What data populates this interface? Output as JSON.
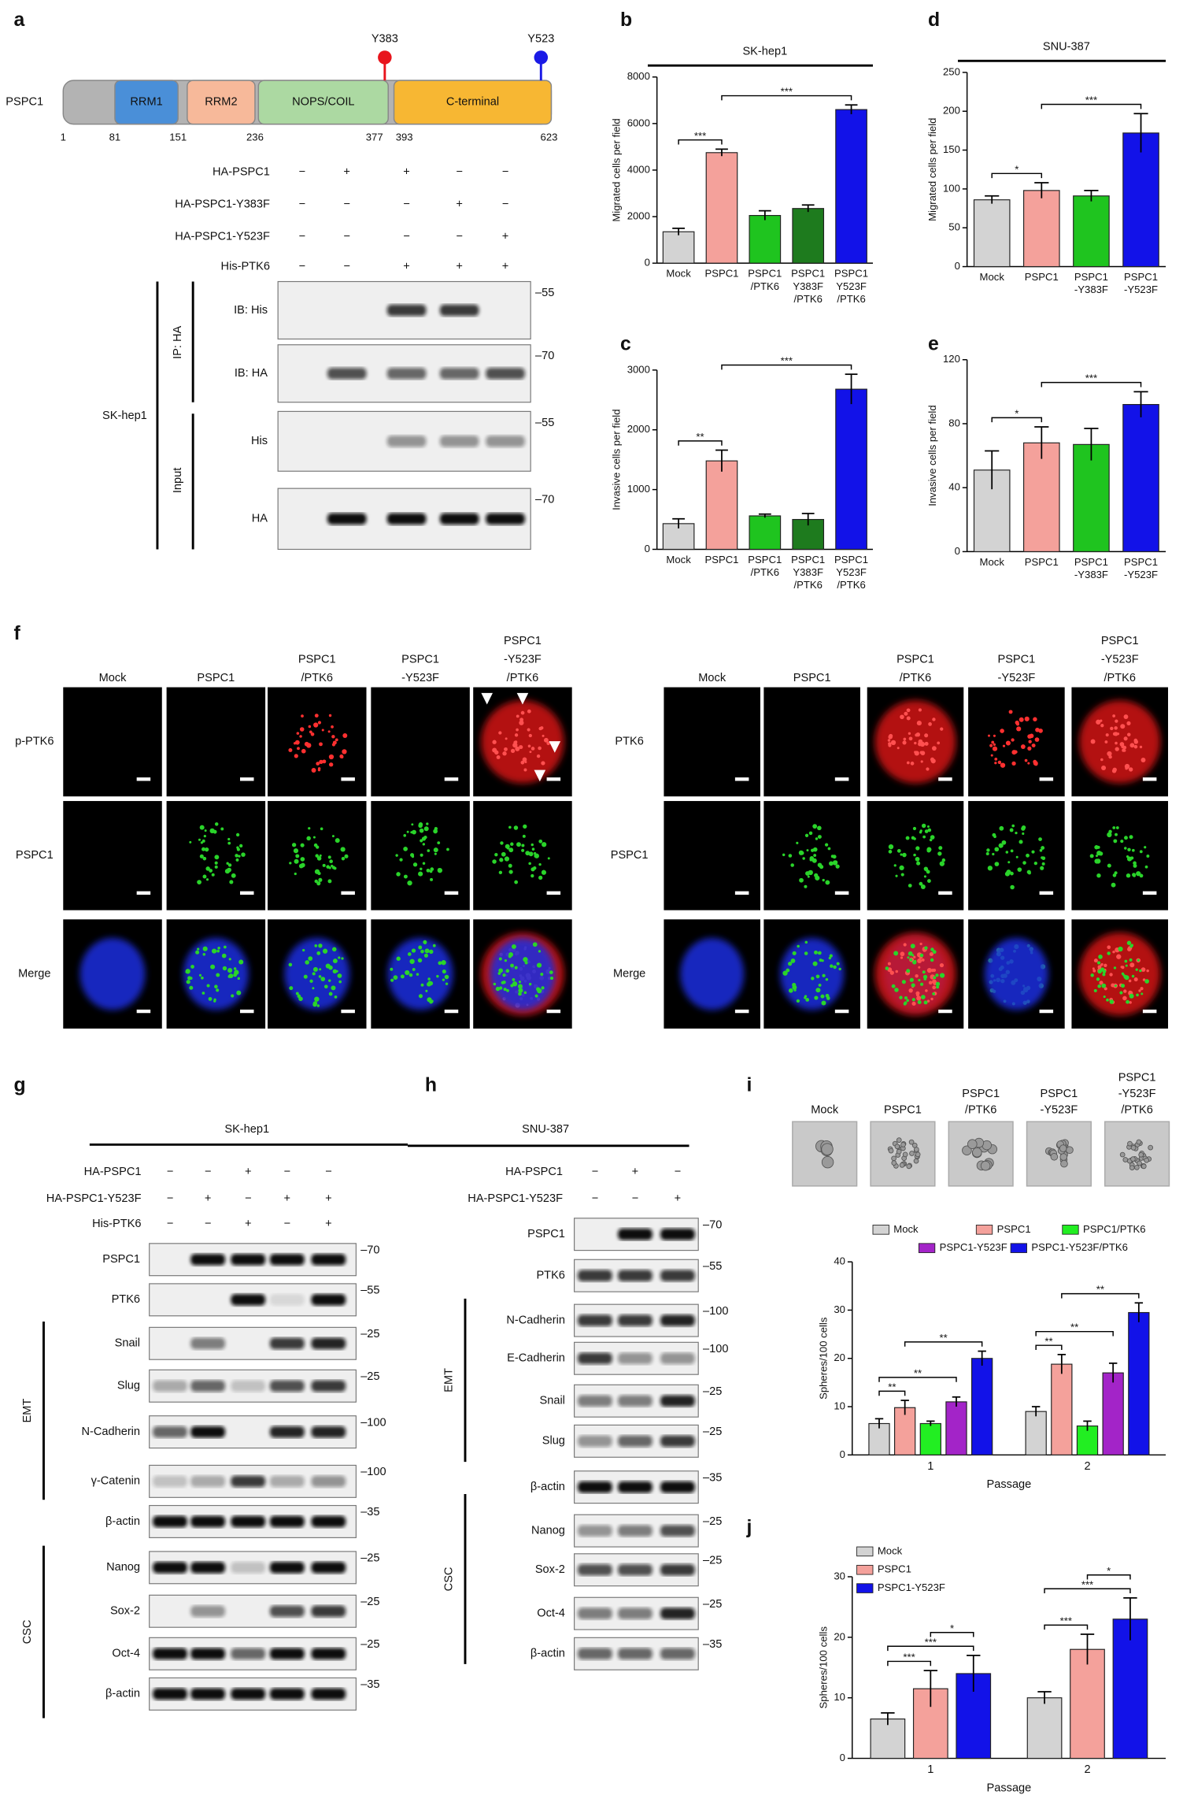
{
  "panel_labels": [
    "a",
    "b",
    "c",
    "d",
    "e",
    "f",
    "g",
    "h",
    "i",
    "j"
  ],
  "panel_a": {
    "protein": "PSPC1",
    "sites": [
      {
        "label": "Y383",
        "color": "#e8141c"
      },
      {
        "label": "Y523",
        "color": "#1a1ae6"
      }
    ],
    "domains": [
      "RRM1",
      "RRM2",
      "NOPS/COIL",
      "C-terminal"
    ],
    "positions": [
      "1",
      "81",
      "151",
      "236",
      "377",
      "393",
      "623"
    ],
    "conditions": [
      {
        "label": "HA-PSPC1",
        "signs": [
          "−",
          "+",
          "+",
          "−",
          "−"
        ]
      },
      {
        "label": "HA-PSPC1-Y383F",
        "signs": [
          "−",
          "−",
          "−",
          "+",
          "−"
        ]
      },
      {
        "label": "HA-PSPC1-Y523F",
        "signs": [
          "−",
          "−",
          "−",
          "−",
          "+"
        ]
      },
      {
        "label": "His-PTK6",
        "signs": [
          "−",
          "−",
          "+",
          "+",
          "+"
        ]
      }
    ],
    "groups": [
      "IP: HA",
      "Input"
    ],
    "cell_line": "SK-hep1",
    "blots": [
      {
        "label": "IB: His",
        "marker": "–55"
      },
      {
        "label": "IB: HA",
        "marker": "–70"
      },
      {
        "label": "His",
        "marker": "–55"
      },
      {
        "label": "HA",
        "marker": "–70"
      }
    ]
  },
  "panel_f": {
    "left": {
      "columns": [
        "Mock",
        "PSPC1",
        "PSPC1 /PTK6",
        "PSPC1 -Y523F",
        "PSPC1 -Y523F /PTK6"
      ],
      "rows": [
        {
          "label": "p-PTK6",
          "color": "#e8141c"
        },
        {
          "label": "PSPC1",
          "color": "#22c422"
        },
        {
          "label": "Merge",
          "color": "#111111"
        }
      ]
    },
    "right": {
      "columns": [
        "Mock",
        "PSPC1",
        "PSPC1 /PTK6",
        "PSPC1 -Y523F",
        "PSPC1 -Y523F /PTK6"
      ],
      "rows": [
        {
          "label": "PTK6",
          "color": "#e8141c"
        },
        {
          "label": "PSPC1",
          "color": "#22c422"
        },
        {
          "label": "Merge",
          "color": "#111111"
        }
      ]
    }
  },
  "panel_g": {
    "cell_line": "SK-hep1",
    "conditions": [
      {
        "label": "HA-PSPC1",
        "signs": [
          "−",
          "−",
          "+",
          "−",
          "−"
        ]
      },
      {
        "label": "HA-PSPC1-Y523F",
        "signs": [
          "−",
          "+",
          "−",
          "+",
          "+"
        ]
      },
      {
        "label": "His-PTK6",
        "signs": [
          "−",
          "−",
          "+",
          "−",
          "+"
        ]
      }
    ],
    "blots": [
      {
        "label": "PSPC1",
        "marker": "–70"
      },
      {
        "label": "PTK6",
        "marker": "–55"
      },
      {
        "label": "Snail",
        "marker": "–25"
      },
      {
        "label": "Slug",
        "marker": "–25"
      },
      {
        "label": "N-Cadherin",
        "marker": "–100"
      },
      {
        "label": "γ-Catenin",
        "marker": "–100"
      },
      {
        "label": "β-actin",
        "marker": "–35"
      },
      {
        "label": "Nanog",
        "marker": "–25"
      },
      {
        "label": "Sox-2",
        "marker": "–25"
      },
      {
        "label": "Oct-4",
        "marker": "–25"
      },
      {
        "label": "β-actin",
        "marker": "–35"
      }
    ],
    "groups": [
      "EMT",
      "CSC"
    ]
  },
  "panel_h": {
    "cell_line": "SNU-387",
    "conditions": [
      {
        "label": "HA-PSPC1",
        "signs": [
          "−",
          "+",
          "−"
        ]
      },
      {
        "label": "HA-PSPC1-Y523F",
        "signs": [
          "−",
          "−",
          "+"
        ]
      }
    ],
    "blots": [
      {
        "label": "PSPC1",
        "marker": "–70"
      },
      {
        "label": "PTK6",
        "marker": "–55"
      },
      {
        "label": "N-Cadherin",
        "marker": "–100"
      },
      {
        "label": "E-Cadherin",
        "marker": "–100"
      },
      {
        "label": "Snail",
        "marker": "–25"
      },
      {
        "label": "Slug",
        "marker": "–25"
      },
      {
        "label": "β-actin",
        "marker": "–35"
      },
      {
        "label": "Nanog",
        "marker": "–25"
      },
      {
        "label": "Sox-2",
        "marker": "–25"
      },
      {
        "label": "Oct-4",
        "marker": "–25"
      },
      {
        "label": "β-actin",
        "marker": "–35"
      }
    ],
    "groups": [
      "EMT",
      "CSC"
    ]
  },
  "panel_i_images": [
    "Mock",
    "PSPC1",
    "PSPC1 /PTK6",
    "PSPC1 -Y523F",
    "PSPC1 -Y523F /PTK6"
  ],
  "chart_data": [
    {
      "type": "bar",
      "title": "SK-hep1",
      "ylabel": "Migrated cells per field",
      "categories": [
        "Mock",
        "PSPC1",
        "PSPC1 /PTK6",
        "PSPC1 Y383F /PTK6",
        "PSPC1 Y523F /PTK6"
      ],
      "values": [
        1350,
        4750,
        2050,
        2350,
        6600
      ],
      "errors": [
        150,
        150,
        200,
        150,
        200
      ],
      "colors": [
        "#d3d3d3",
        "#f4a19b",
        "#1fc41f",
        "#1e7b1e",
        "#1212e8"
      ],
      "ylim": [
        0,
        8000
      ],
      "yticks": [
        0,
        2000,
        4000,
        6000,
        8000
      ],
      "significance": [
        {
          "between": [
            "Mock",
            "PSPC1"
          ],
          "label": "***"
        },
        {
          "between": [
            "PSPC1",
            "PSPC1 Y523F /PTK6"
          ],
          "label": "***"
        }
      ]
    },
    {
      "type": "bar",
      "ylabel": "Invasive cells per field",
      "categories": [
        "Mock",
        "PSPC1",
        "PSPC1 /PTK6",
        "PSPC1 Y383F /PTK6",
        "PSPC1 Y523F /PTK6"
      ],
      "values": [
        430,
        1480,
        560,
        500,
        2680
      ],
      "errors": [
        80,
        180,
        30,
        100,
        250
      ],
      "colors": [
        "#d3d3d3",
        "#f4a19b",
        "#1fc41f",
        "#1e7b1e",
        "#1212e8"
      ],
      "ylim": [
        0,
        3000
      ],
      "yticks": [
        0,
        1000,
        2000,
        3000
      ],
      "significance": [
        {
          "between": [
            "Mock",
            "PSPC1"
          ],
          "label": "**"
        },
        {
          "between": [
            "PSPC1",
            "PSPC1 Y523F /PTK6"
          ],
          "label": "***"
        }
      ]
    },
    {
      "type": "bar",
      "title": "SNU-387",
      "ylabel": "Migrated cells per field",
      "categories": [
        "Mock",
        "PSPC1",
        "PSPC1 -Y383F",
        "PSPC1 -Y523F"
      ],
      "values": [
        86,
        98,
        91,
        172
      ],
      "errors": [
        5,
        10,
        7,
        25
      ],
      "colors": [
        "#d3d3d3",
        "#f4a19b",
        "#1fc41f",
        "#1212e8"
      ],
      "ylim": [
        0,
        250
      ],
      "yticks": [
        0,
        50,
        100,
        150,
        200,
        250
      ],
      "significance": [
        {
          "between": [
            "Mock",
            "PSPC1"
          ],
          "label": "*"
        },
        {
          "between": [
            "PSPC1",
            "PSPC1 -Y523F"
          ],
          "label": "***"
        }
      ]
    },
    {
      "type": "bar",
      "ylabel": "Invasive cells per field",
      "categories": [
        "Mock",
        "PSPC1",
        "PSPC1 -Y383F",
        "PSPC1 -Y523F"
      ],
      "values": [
        51,
        68,
        67,
        92
      ],
      "errors": [
        12,
        10,
        10,
        8
      ],
      "colors": [
        "#d3d3d3",
        "#f4a19b",
        "#1fc41f",
        "#1212e8"
      ],
      "ylim": [
        0,
        120
      ],
      "yticks": [
        0,
        40,
        80,
        120
      ],
      "significance": [
        {
          "between": [
            "Mock",
            "PSPC1"
          ],
          "label": "*"
        },
        {
          "between": [
            "PSPC1",
            "PSPC1 -Y523F"
          ],
          "label": "***"
        }
      ]
    },
    {
      "type": "bar",
      "ylabel": "Spheres/100 cells",
      "xlabel": "Passage",
      "categories": [
        "1",
        "2"
      ],
      "series": [
        {
          "name": "Mock",
          "color": "#d3d3d3",
          "values": [
            6.5,
            9
          ],
          "errors": [
            1,
            1
          ]
        },
        {
          "name": "PSPC1",
          "color": "#f4a19b",
          "values": [
            9.8,
            18.8
          ],
          "errors": [
            1.5,
            2
          ]
        },
        {
          "name": "PSPC1/PTK6",
          "color": "#22ee22",
          "values": [
            6.5,
            6
          ],
          "errors": [
            0.5,
            1
          ]
        },
        {
          "name": "PSPC1-Y523F",
          "color": "#a324c8",
          "values": [
            11,
            17
          ],
          "errors": [
            1,
            2
          ]
        },
        {
          "name": "PSPC1-Y523F/PTK6",
          "color": "#1212e8",
          "values": [
            20,
            29.5
          ],
          "errors": [
            1.5,
            2
          ]
        }
      ],
      "ylim": [
        0,
        40
      ],
      "yticks": [
        0,
        10,
        20,
        30,
        40
      ],
      "significance": [
        {
          "category": "1",
          "between": [
            "Mock",
            "PSPC1"
          ],
          "label": "**"
        },
        {
          "category": "1",
          "between": [
            "Mock",
            "PSPC1-Y523F"
          ],
          "label": "**"
        },
        {
          "category": "1",
          "between": [
            "PSPC1",
            "PSPC1-Y523F/PTK6"
          ],
          "label": "**"
        },
        {
          "category": "2",
          "between": [
            "Mock",
            "PSPC1"
          ],
          "label": "**"
        },
        {
          "category": "2",
          "between": [
            "Mock",
            "PSPC1-Y523F"
          ],
          "label": "**"
        },
        {
          "category": "2",
          "between": [
            "PSPC1",
            "PSPC1-Y523F/PTK6"
          ],
          "label": "**"
        }
      ]
    },
    {
      "type": "bar",
      "ylabel": "Spheres/100 cells",
      "xlabel": "Passage",
      "categories": [
        "1",
        "2"
      ],
      "series": [
        {
          "name": "Mock",
          "color": "#d3d3d3",
          "values": [
            6.5,
            10
          ],
          "errors": [
            1,
            1
          ]
        },
        {
          "name": "PSPC1",
          "color": "#f4a19b",
          "values": [
            11.5,
            18
          ],
          "errors": [
            3,
            2.5
          ]
        },
        {
          "name": "PSPC1-Y523F",
          "color": "#1212e8",
          "values": [
            14,
            23
          ],
          "errors": [
            3,
            3.5
          ]
        }
      ],
      "ylim": [
        0,
        30
      ],
      "yticks": [
        0,
        10,
        20,
        30
      ],
      "significance": [
        {
          "category": "1",
          "between": [
            "Mock",
            "PSPC1"
          ],
          "label": "***"
        },
        {
          "category": "1",
          "between": [
            "Mock",
            "PSPC1-Y523F"
          ],
          "label": "***"
        },
        {
          "category": "1",
          "between": [
            "PSPC1",
            "PSPC1-Y523F"
          ],
          "label": "*"
        },
        {
          "category": "2",
          "between": [
            "Mock",
            "PSPC1"
          ],
          "label": "***"
        },
        {
          "category": "2",
          "between": [
            "Mock",
            "PSPC1-Y523F"
          ],
          "label": "***"
        },
        {
          "category": "2",
          "between": [
            "PSPC1",
            "PSPC1-Y523F"
          ],
          "label": "*"
        }
      ]
    }
  ]
}
